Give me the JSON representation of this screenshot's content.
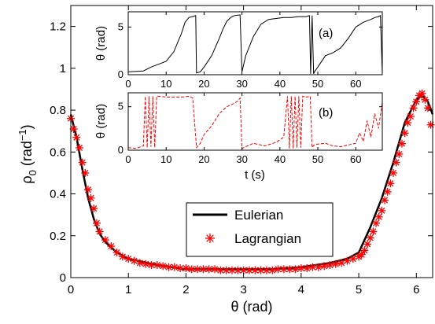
{
  "chart_data": [
    {
      "panel": "main",
      "type": "line",
      "xlabel": "θ (rad)",
      "ylabel": "ρ₀ (rad⁻¹)",
      "ylabel_base": "ρ",
      "ylabel_sub": "0",
      "ylabel_unit": "rad",
      "ylabel_sup": "−1",
      "xlim": [
        0,
        6.283
      ],
      "ylim": [
        0,
        1.3
      ],
      "xticks": [
        0,
        1,
        2,
        3,
        4,
        5,
        6
      ],
      "yticks": [
        0,
        0.2,
        0.4,
        0.6,
        0.8,
        1,
        1.2
      ],
      "ytick_labels": [
        "0",
        "0.2",
        "0.4",
        "0.6",
        "0.8",
        "1",
        "1.2"
      ],
      "legend_position": "center-right",
      "series": [
        {
          "name": "Eulerian",
          "style": "solid",
          "color": "#000000",
          "x": [
            0,
            0.1,
            0.2,
            0.3,
            0.4,
            0.5,
            0.6,
            0.8,
            1.0,
            1.5,
            2.0,
            2.5,
            3.0,
            3.5,
            4.0,
            4.5,
            4.8,
            5.0,
            5.2,
            5.4,
            5.6,
            5.8,
            6.0,
            6.1,
            6.2,
            6.283
          ],
          "y": [
            0.78,
            0.67,
            0.52,
            0.38,
            0.28,
            0.21,
            0.17,
            0.12,
            0.09,
            0.06,
            0.04,
            0.04,
            0.04,
            0.04,
            0.05,
            0.07,
            0.09,
            0.12,
            0.24,
            0.38,
            0.55,
            0.74,
            0.85,
            0.87,
            0.84,
            0.78
          ]
        },
        {
          "name": "Lagrangian",
          "style": "markers",
          "marker": "asterisk",
          "color": "#ff0000",
          "x": [
            0,
            0.05,
            0.1,
            0.15,
            0.2,
            0.25,
            0.3,
            0.35,
            0.4,
            0.45,
            0.5,
            0.6,
            0.7,
            0.8,
            0.9,
            1.0,
            1.1,
            1.2,
            1.3,
            1.4,
            1.5,
            1.6,
            1.7,
            1.8,
            1.9,
            2.0,
            2.1,
            2.2,
            2.3,
            2.4,
            2.5,
            2.6,
            2.7,
            2.8,
            2.9,
            3.0,
            3.1,
            3.2,
            3.3,
            3.4,
            3.5,
            3.6,
            3.7,
            3.8,
            3.9,
            4.0,
            4.1,
            4.2,
            4.3,
            4.4,
            4.5,
            4.6,
            4.7,
            4.8,
            4.9,
            5.0,
            5.05,
            5.1,
            5.15,
            5.2,
            5.25,
            5.3,
            5.35,
            5.4,
            5.45,
            5.5,
            5.55,
            5.6,
            5.65,
            5.7,
            5.75,
            5.8,
            5.85,
            5.9,
            5.95,
            6.0,
            6.05,
            6.1,
            6.15,
            6.2,
            6.25
          ],
          "y": [
            0.76,
            0.71,
            0.67,
            0.62,
            0.55,
            0.5,
            0.42,
            0.38,
            0.33,
            0.26,
            0.22,
            0.18,
            0.15,
            0.12,
            0.1,
            0.09,
            0.08,
            0.07,
            0.065,
            0.06,
            0.06,
            0.055,
            0.05,
            0.05,
            0.045,
            0.045,
            0.04,
            0.04,
            0.04,
            0.04,
            0.04,
            0.035,
            0.035,
            0.035,
            0.035,
            0.035,
            0.035,
            0.035,
            0.035,
            0.035,
            0.035,
            0.04,
            0.04,
            0.04,
            0.04,
            0.045,
            0.045,
            0.05,
            0.05,
            0.055,
            0.06,
            0.065,
            0.07,
            0.08,
            0.09,
            0.1,
            0.11,
            0.13,
            0.16,
            0.19,
            0.22,
            0.26,
            0.29,
            0.32,
            0.37,
            0.41,
            0.45,
            0.5,
            0.55,
            0.59,
            0.64,
            0.69,
            0.74,
            0.77,
            0.81,
            0.84,
            0.87,
            0.88,
            0.85,
            0.81,
            0.73
          ]
        }
      ]
    },
    {
      "panel": "inset-a",
      "type": "line",
      "annotation": "(a)",
      "ylabel": "θ (rad)",
      "xlim": [
        0,
        67
      ],
      "ylim": [
        0,
        6.6
      ],
      "xticks": [
        0,
        10,
        20,
        30,
        40,
        50,
        60
      ],
      "yticks": [
        0,
        5
      ],
      "color": "#000000",
      "style": "solid",
      "x": [
        0,
        4,
        6,
        8,
        10,
        12,
        14,
        15,
        16,
        17,
        17.8,
        18.0,
        19,
        20,
        22,
        24,
        25,
        26,
        27,
        28,
        29,
        29.5,
        30,
        31,
        33,
        35,
        37,
        39,
        41,
        43,
        45,
        47,
        47.8,
        48.1,
        48.5,
        48.9,
        49.1,
        50,
        52,
        54,
        56,
        58,
        60,
        62,
        64,
        65,
        66,
        66.5,
        67
      ],
      "y": [
        0.3,
        0.4,
        0.8,
        1.1,
        1.4,
        2.4,
        4.3,
        5.5,
        6.0,
        6.1,
        6.2,
        0.2,
        0.3,
        0.8,
        2.0,
        3.8,
        4.8,
        5.6,
        6.0,
        6.2,
        6.25,
        6.28,
        0.3,
        2.0,
        4.0,
        5.3,
        5.8,
        5.9,
        6.0,
        6.0,
        6.1,
        6.1,
        6.2,
        0.1,
        6.2,
        0.1,
        0.3,
        0.8,
        2.0,
        2.3,
        2.8,
        3.8,
        5.0,
        5.5,
        5.8,
        6.0,
        6.1,
        6.2,
        0.2
      ]
    },
    {
      "panel": "inset-b",
      "type": "line",
      "annotation": "(b)",
      "xlabel": "t (s)",
      "ylabel": "θ (rad)",
      "xlim": [
        0,
        67
      ],
      "ylim": [
        0,
        6.6
      ],
      "xticks": [
        0,
        10,
        20,
        30,
        40,
        50,
        60
      ],
      "yticks": [
        0,
        5
      ],
      "color": "#ff0000",
      "style": "dashed",
      "x": [
        0,
        2,
        4,
        4.5,
        5,
        5.5,
        6,
        6.5,
        7,
        7.5,
        8,
        10,
        12,
        14,
        16,
        17,
        18,
        19,
        20,
        22,
        24,
        26,
        28,
        29,
        29.5,
        30,
        31,
        33,
        36,
        39,
        41,
        42,
        42.5,
        43,
        43.5,
        44,
        44.5,
        45,
        45.5,
        46,
        47,
        48,
        48.5,
        49,
        50,
        52,
        54,
        56,
        58,
        60,
        61,
        62,
        63,
        64,
        65,
        66,
        67
      ],
      "y": [
        0.3,
        0.2,
        0.5,
        6.2,
        0.3,
        6.2,
        0.4,
        6.2,
        0.3,
        6.2,
        6.2,
        6.1,
        6.1,
        6.1,
        6.2,
        6.0,
        0.3,
        0.8,
        1.8,
        2.8,
        4.2,
        5.0,
        5.4,
        5.7,
        6.0,
        0.2,
        0.4,
        0.8,
        0.5,
        0.9,
        1.5,
        6.2,
        0.2,
        6.2,
        0.2,
        6.2,
        0.3,
        6.2,
        0.3,
        6.2,
        6.1,
        6.2,
        0.3,
        0.6,
        0.7,
        0.8,
        0.5,
        0.4,
        0.6,
        0.8,
        2.0,
        1.0,
        3.4,
        1.5,
        4.2,
        2.5,
        5.5
      ]
    }
  ]
}
